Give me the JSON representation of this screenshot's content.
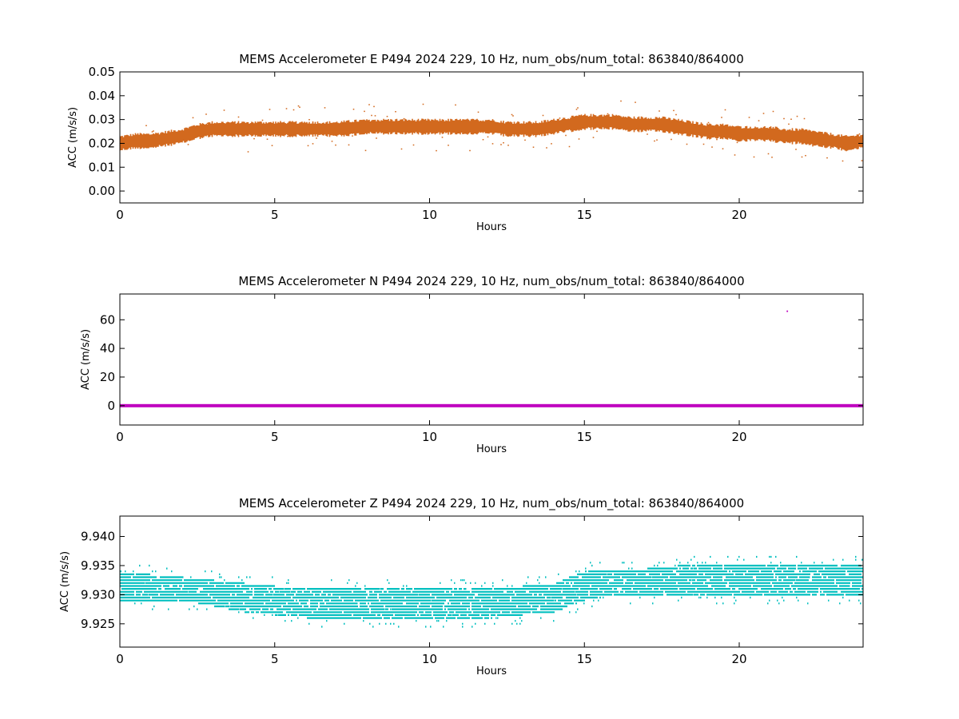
{
  "chart_data": [
    {
      "type": "scatter",
      "title": "MEMS Accelerometer E P494 2024 229, 10 Hz, num_obs/num_total: 863840/864000",
      "xlabel": "Hours",
      "ylabel": "ACC (m/s/s)",
      "xlim": [
        0,
        24
      ],
      "ylim": [
        -0.005,
        0.05
      ],
      "xticks": [
        0,
        5,
        10,
        15,
        20
      ],
      "xtick_labels": [
        "0",
        "5",
        "10",
        "15",
        "20"
      ],
      "yticks": [
        0.0,
        0.01,
        0.02,
        0.03,
        0.04,
        0.05
      ],
      "ytick_labels": [
        "0.00",
        "0.01",
        "0.02",
        "0.03",
        "0.04",
        "0.05"
      ],
      "grid": false,
      "color": "#d2691e",
      "series": [
        {
          "x": [
            0,
            0.5,
            1,
            1.5,
            2,
            2.5,
            3,
            4,
            5,
            6,
            7,
            8,
            9,
            10,
            11,
            12,
            12.5,
            13,
            13.5,
            14,
            14.5,
            15,
            15.5,
            16,
            16.5,
            17,
            17.5,
            18,
            18.5,
            19,
            19.5,
            20,
            20.5,
            21,
            21.5,
            22,
            22.5,
            23,
            23.5,
            24
          ],
          "y": [
            0.02,
            0.021,
            0.021,
            0.022,
            0.023,
            0.025,
            0.026,
            0.026,
            0.026,
            0.026,
            0.026,
            0.027,
            0.027,
            0.027,
            0.027,
            0.027,
            0.026,
            0.026,
            0.026,
            0.027,
            0.028,
            0.029,
            0.029,
            0.029,
            0.028,
            0.028,
            0.028,
            0.027,
            0.026,
            0.025,
            0.025,
            0.024,
            0.024,
            0.024,
            0.023,
            0.023,
            0.022,
            0.021,
            0.02,
            0.021
          ]
        }
      ]
    },
    {
      "type": "scatter",
      "title": "MEMS Accelerometer N P494 2024 229, 10 Hz, num_obs/num_total: 863840/864000",
      "xlabel": "Hours",
      "ylabel": "ACC (m/s/s)",
      "xlim": [
        0,
        24
      ],
      "ylim": [
        -13.5,
        78
      ],
      "xticks": [
        0,
        5,
        10,
        15,
        20
      ],
      "xtick_labels": [
        "0",
        "5",
        "10",
        "15",
        "20"
      ],
      "yticks": [
        0,
        20,
        40,
        60
      ],
      "ytick_labels": [
        "0",
        "20",
        "40",
        "60"
      ],
      "grid": false,
      "color": "#bf00bf",
      "series": [
        {
          "x": [
            0,
            4,
            8,
            12,
            16,
            20,
            24
          ],
          "y": [
            0,
            0,
            0,
            0,
            0,
            0,
            0
          ]
        }
      ],
      "outliers": [
        {
          "x": 21.55,
          "y": 66
        }
      ]
    },
    {
      "type": "scatter",
      "title": "MEMS Accelerometer Z P494 2024 229, 10 Hz, num_obs/num_total: 863840/864000",
      "xlabel": "Hours",
      "ylabel": "ACC (m/s/s)",
      "xlim": [
        0,
        24
      ],
      "ylim": [
        9.921,
        9.9435
      ],
      "xticks": [
        0,
        5,
        10,
        15,
        20
      ],
      "xtick_labels": [
        "0",
        "5",
        "10",
        "15",
        "20"
      ],
      "yticks": [
        9.925,
        9.93,
        9.935,
        9.94
      ],
      "ytick_labels": [
        "9.925",
        "9.930",
        "9.935",
        "9.940"
      ],
      "grid": false,
      "color": "#00bfbf",
      "series": [
        {
          "x": [
            0,
            2,
            4,
            6,
            8,
            10,
            12,
            14,
            14.5,
            15,
            16,
            18,
            20,
            22,
            24
          ],
          "y_min": [
            9.929,
            9.929,
            9.927,
            9.926,
            9.926,
            9.926,
            9.926,
            9.927,
            9.928,
            9.929,
            9.93,
            9.93,
            9.93,
            9.93,
            9.93
          ],
          "y_max": [
            9.934,
            9.933,
            9.932,
            9.931,
            9.931,
            9.931,
            9.931,
            9.932,
            9.933,
            9.934,
            9.934,
            9.935,
            9.935,
            9.935,
            9.935
          ]
        }
      ]
    }
  ]
}
